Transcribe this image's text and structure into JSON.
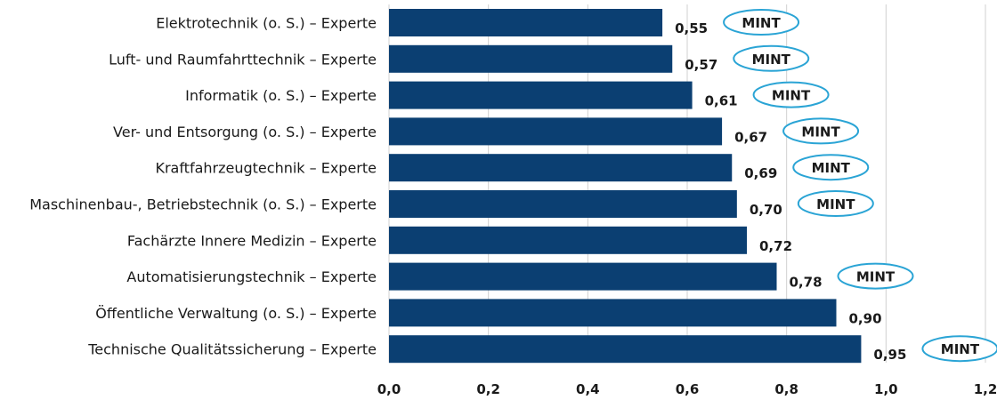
{
  "chart_data": {
    "type": "bar",
    "orientation": "horizontal",
    "categories": [
      "Elektrotechnik (o. S.) – Experte",
      "Luft- und Raumfahrttechnik – Experte",
      "Informatik (o. S.) – Experte",
      "Ver- und Entsorgung (o. S.) – Experte",
      "Kraftfahrzeugtechnik – Experte",
      "Maschinenbau-, Betriebstechnik (o. S.) – Experte",
      "Fachärzte Innere Medizin – Experte",
      "Automatisierungstechnik – Experte",
      "Öffentliche Verwaltung (o. S.) – Experte",
      "Technische Qualitätssicherung – Experte"
    ],
    "values": [
      0.55,
      0.57,
      0.61,
      0.67,
      0.69,
      0.7,
      0.72,
      0.78,
      0.9,
      0.95
    ],
    "value_labels": [
      "0,55",
      "0,57",
      "0,61",
      "0,67",
      "0,69",
      "0,70",
      "0,72",
      "0,78",
      "0,90",
      "0,95"
    ],
    "badges": [
      "MINT",
      "MINT",
      "MINT",
      "MINT",
      "MINT",
      "MINT",
      "",
      "MINT",
      "",
      "MINT"
    ],
    "xlim": [
      0,
      1.2
    ],
    "ticks": [
      0,
      0.2,
      0.4,
      0.6,
      0.8,
      1.0,
      1.2
    ],
    "tick_labels": [
      "0,0",
      "0,2",
      "0,4",
      "0,6",
      "0,8",
      "1,0",
      "1,2"
    ],
    "grid": true,
    "colors": {
      "bar": "#0b3f72",
      "badge_border": "#2aa4d5",
      "grid": "#d0d0d0"
    }
  }
}
